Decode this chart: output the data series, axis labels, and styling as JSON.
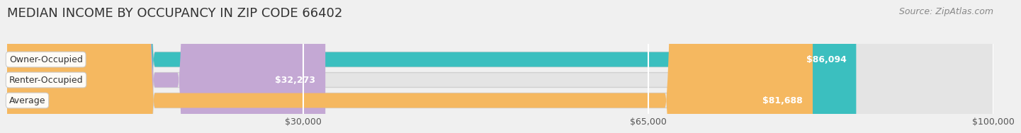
{
  "title": "MEDIAN INCOME BY OCCUPANCY IN ZIP CODE 66402",
  "source": "Source: ZipAtlas.com",
  "categories": [
    "Owner-Occupied",
    "Renter-Occupied",
    "Average"
  ],
  "values": [
    86094,
    32273,
    81688
  ],
  "labels": [
    "$86,094",
    "$32,273",
    "$81,688"
  ],
  "bar_colors": [
    "#3bbfbf",
    "#c4a8d4",
    "#f5b860"
  ],
  "xlim": [
    0,
    100000
  ],
  "xticks": [
    30000,
    65000,
    100000
  ],
  "xticklabels": [
    "$30,000",
    "$65,000",
    "$100,000"
  ],
  "background_color": "#f0f0f0",
  "bar_bg_color": "#e4e4e4",
  "bar_bg_edge": "#d0d0d0",
  "title_fontsize": 13,
  "source_fontsize": 9,
  "bar_height": 0.72,
  "figsize": [
    14.06,
    1.97
  ]
}
